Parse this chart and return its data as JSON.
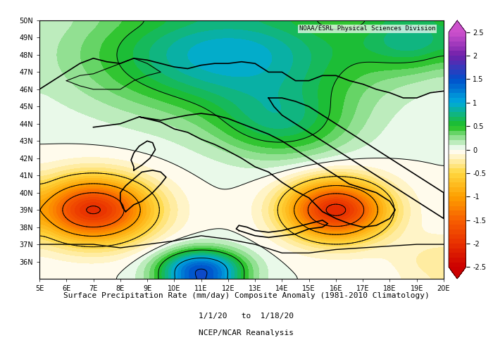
{
  "title_line1": "Surface Precipitation Rate (mm/day) Composite Anomaly (1981-2010 Climatology)",
  "title_line2": "1/1/20   to  1/18/20",
  "title_line3": "NCEP/NCAR Reanalysis",
  "watermark": "NOAA/ESRL Physical Sciences Division",
  "lon_min": 5,
  "lon_max": 20,
  "lat_min": 35,
  "lat_max": 50,
  "lon_ticks": [
    5,
    6,
    7,
    8,
    9,
    10,
    11,
    12,
    13,
    14,
    15,
    16,
    17,
    18,
    19,
    20
  ],
  "lat_ticks": [
    36,
    37,
    38,
    39,
    40,
    41,
    42,
    43,
    44,
    45,
    46,
    47,
    48,
    49,
    50
  ],
  "colorbar_levels": [
    -2.5,
    -2,
    -1.5,
    -1,
    -0.5,
    0,
    0.5,
    1,
    1.5,
    2,
    2.5
  ],
  "colorbar_colors": [
    "#d10000",
    "#e84000",
    "#f87800",
    "#fdb800",
    "#ffe060",
    "#ffffff",
    "#00e000",
    "#00b8e0",
    "#0070e0",
    "#8040c0",
    "#d060d0"
  ],
  "background_color": "#ffffff",
  "map_background": "#e8ffe8"
}
